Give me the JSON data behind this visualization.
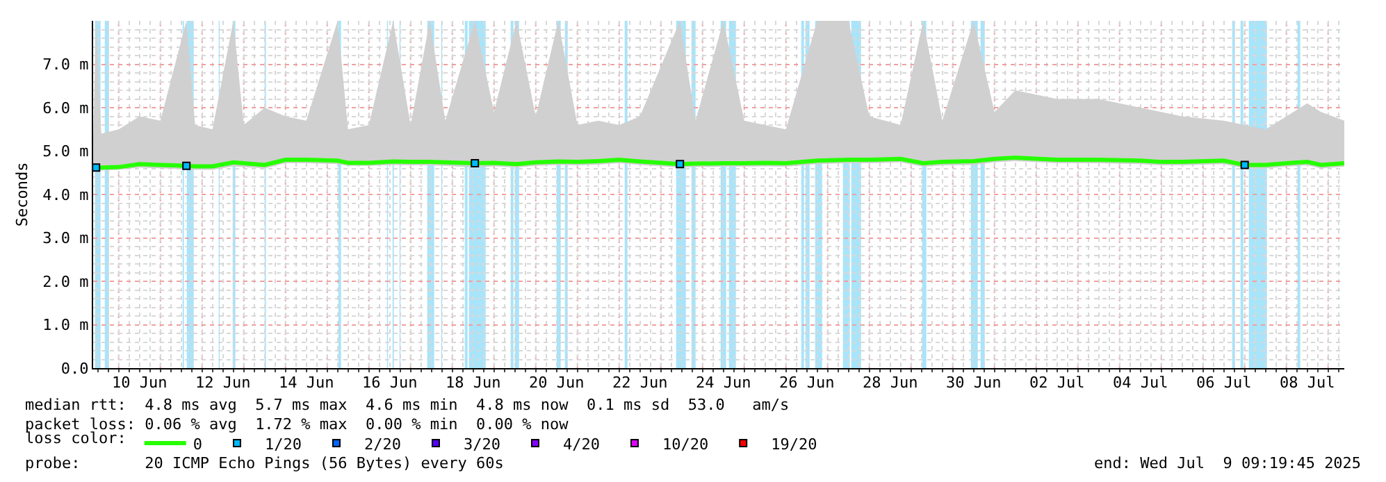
{
  "chart_data": {
    "type": "line",
    "ylabel": "Seconds",
    "legend_title": "loss color:",
    "xlim": [
      "2025-06-09T09:19",
      "2025-07-09T09:19"
    ],
    "xticks": [
      {
        "value": "2025-06-10T12:00",
        "label": "10 Jun"
      },
      {
        "value": "2025-06-12T12:00",
        "label": "12 Jun"
      },
      {
        "value": "2025-06-14T12:00",
        "label": "14 Jun"
      },
      {
        "value": "2025-06-16T12:00",
        "label": "16 Jun"
      },
      {
        "value": "2025-06-18T12:00",
        "label": "18 Jun"
      },
      {
        "value": "2025-06-20T12:00",
        "label": "20 Jun"
      },
      {
        "value": "2025-06-22T12:00",
        "label": "22 Jun"
      },
      {
        "value": "2025-06-24T12:00",
        "label": "24 Jun"
      },
      {
        "value": "2025-06-26T12:00",
        "label": "26 Jun"
      },
      {
        "value": "2025-06-28T12:00",
        "label": "28 Jun"
      },
      {
        "value": "2025-06-30T12:00",
        "label": "30 Jun"
      },
      {
        "value": "2025-07-02T12:00",
        "label": "02 Jul"
      },
      {
        "value": "2025-07-04T12:00",
        "label": "04 Jul"
      },
      {
        "value": "2025-07-06T12:00",
        "label": "06 Jul"
      },
      {
        "value": "2025-07-08T12:00",
        "label": "08 Jul"
      }
    ],
    "ylim": [
      0,
      8
    ],
    "yticks": [
      {
        "value": 0,
        "label": "0.0"
      },
      {
        "value": 1,
        "label": "1.0 m"
      },
      {
        "value": 2,
        "label": "2.0 m"
      },
      {
        "value": 3,
        "label": "3.0 m"
      },
      {
        "value": 4,
        "label": "4.0 m"
      },
      {
        "value": 5,
        "label": "5.0 m"
      },
      {
        "value": 6,
        "label": "6.0 m"
      },
      {
        "value": 7,
        "label": "7.0 m"
      }
    ],
    "grid": true,
    "legend": "bottom",
    "series": [
      {
        "name": "0",
        "color": "#26ff00",
        "x": [
          "2025-06-09T09:19",
          "2025-06-09T11:00",
          "2025-06-09T14:00",
          "2025-06-10T00:00",
          "2025-06-10T12:00",
          "2025-06-11T00:00",
          "2025-06-11T15:00",
          "2025-06-11T20:00",
          "2025-06-12T06:00",
          "2025-06-12T18:00",
          "2025-06-13T00:00",
          "2025-06-13T12:00",
          "2025-06-14T00:00",
          "2025-06-14T12:00",
          "2025-06-15T06:00",
          "2025-06-15T12:00",
          "2025-06-16T00:00",
          "2025-06-16T14:00",
          "2025-06-17T00:00",
          "2025-06-17T11:00",
          "2025-06-17T20:00",
          "2025-06-18T13:00",
          "2025-06-19T00:00",
          "2025-06-19T13:00",
          "2025-06-20T00:00",
          "2025-06-20T13:00",
          "2025-06-21T00:00",
          "2025-06-21T12:00",
          "2025-06-22T00:00",
          "2025-06-22T12:00",
          "2025-06-23T11:00",
          "2025-06-23T20:00",
          "2025-06-24T12:00",
          "2025-06-25T00:00",
          "2025-06-25T12:00",
          "2025-06-26T00:00",
          "2025-06-26T18:00",
          "2025-06-27T12:00",
          "2025-06-28T00:00",
          "2025-06-28T18:00",
          "2025-06-29T07:00",
          "2025-06-29T18:00",
          "2025-06-30T12:00",
          "2025-07-01T00:00",
          "2025-07-01T12:00",
          "2025-07-02T12:00",
          "2025-07-03T12:00",
          "2025-07-04T12:00",
          "2025-07-05T00:00",
          "2025-07-05T12:00",
          "2025-07-06T12:00",
          "2025-07-07T00:00",
          "2025-07-07T12:00",
          "2025-07-08T00:00",
          "2025-07-08T12:00",
          "2025-07-08T20:00",
          "2025-07-09T09:19"
        ],
        "values": [
          4.62,
          4.62,
          4.62,
          4.63,
          4.7,
          4.68,
          4.66,
          4.65,
          4.65,
          4.74,
          4.72,
          4.68,
          4.8,
          4.8,
          4.78,
          4.73,
          4.73,
          4.76,
          4.75,
          4.75,
          4.74,
          4.72,
          4.73,
          4.7,
          4.74,
          4.76,
          4.75,
          4.77,
          4.8,
          4.76,
          4.7,
          4.71,
          4.72,
          4.72,
          4.73,
          4.72,
          4.78,
          4.8,
          4.8,
          4.82,
          4.72,
          4.75,
          4.77,
          4.82,
          4.85,
          4.8,
          4.8,
          4.78,
          4.75,
          4.75,
          4.78,
          4.68,
          4.68,
          4.72,
          4.75,
          4.68,
          4.72
        ],
        "lower": [
          4.55,
          4.55,
          4.55,
          4.57,
          4.62,
          4.6,
          4.58,
          4.57,
          4.57,
          4.65,
          4.63,
          4.6,
          4.72,
          4.72,
          4.7,
          4.66,
          4.66,
          4.68,
          4.67,
          4.67,
          4.66,
          4.62,
          4.65,
          4.62,
          4.66,
          4.68,
          4.67,
          4.69,
          4.72,
          4.68,
          4.62,
          4.63,
          4.64,
          4.64,
          4.65,
          4.64,
          4.7,
          4.72,
          4.72,
          4.74,
          4.64,
          4.67,
          4.68,
          4.74,
          4.77,
          4.72,
          4.72,
          4.7,
          4.67,
          4.67,
          4.7,
          4.6,
          4.6,
          4.64,
          4.67,
          4.6,
          4.64
        ],
        "upper": [
          5.3,
          8.0,
          5.4,
          5.5,
          5.8,
          5.7,
          8.0,
          5.6,
          5.5,
          8.0,
          5.6,
          6.0,
          5.8,
          5.7,
          8.0,
          5.5,
          5.6,
          8.0,
          5.6,
          8.0,
          5.7,
          8.0,
          5.9,
          8.0,
          5.8,
          8.0,
          5.6,
          5.7,
          5.6,
          5.8,
          8.0,
          5.7,
          8.0,
          5.7,
          5.6,
          5.5,
          8.0,
          8.0,
          5.8,
          5.6,
          8.0,
          5.7,
          8.0,
          5.9,
          6.4,
          6.2,
          6.2,
          6.0,
          5.9,
          5.8,
          5.7,
          5.6,
          5.5,
          5.8,
          6.1,
          5.9,
          5.7
        ]
      },
      {
        "name": "1/20",
        "type": "scatter",
        "color": "#00b8ff",
        "x": [
          "2025-06-09T11:00",
          "2025-06-11T15:00",
          "2025-06-18T13:00",
          "2025-06-23T11:00",
          "2025-07-07T00:00"
        ],
        "values": [
          4.62,
          4.66,
          4.72,
          4.7,
          4.68
        ]
      },
      {
        "name": "2/20",
        "type": "scatter",
        "color": "#0066ff"
      },
      {
        "name": "3/20",
        "type": "scatter",
        "color": "#5500ff"
      },
      {
        "name": "4/20",
        "type": "scatter",
        "color": "#8800ff"
      },
      {
        "name": "10/20",
        "type": "scatter",
        "color": "#dd00ff"
      },
      {
        "name": "19/20",
        "type": "scatter",
        "color": "#ff0000"
      }
    ],
    "bands": [
      {
        "axis": "x",
        "from": "2025-06-09T10:24",
        "to": "2025-06-09T13:36",
        "color": "#a8e4fa"
      },
      {
        "axis": "x",
        "from": "2025-06-09T16:00",
        "to": "2025-06-09T18:24",
        "color": "#a8e4fa"
      },
      {
        "axis": "x",
        "from": "2025-06-11T12:48",
        "to": "2025-06-11T13:36",
        "color": "#a8e4fa"
      },
      {
        "axis": "x",
        "from": "2025-06-11T15:12",
        "to": "2025-06-11T19:12",
        "color": "#a8e4fa"
      },
      {
        "axis": "x",
        "from": "2025-06-12T09:36",
        "to": "2025-06-12T10:12",
        "color": "#a8e4fa"
      },
      {
        "axis": "x",
        "from": "2025-06-12T17:36",
        "to": "2025-06-12T19:12",
        "color": "#a8e4fa"
      },
      {
        "axis": "x",
        "from": "2025-06-13T12:00",
        "to": "2025-06-13T12:48",
        "color": "#a8e4fa"
      },
      {
        "axis": "x",
        "from": "2025-06-15T06:24",
        "to": "2025-06-15T08:00",
        "color": "#a8e4fa"
      },
      {
        "axis": "x",
        "from": "2025-06-16T10:24",
        "to": "2025-06-16T11:00",
        "color": "#a8e4fa"
      },
      {
        "axis": "x",
        "from": "2025-06-16T13:36",
        "to": "2025-06-16T14:24",
        "color": "#a8e4fa"
      },
      {
        "axis": "x",
        "from": "2025-06-16T17:36",
        "to": "2025-06-16T18:12",
        "color": "#a8e4fa"
      },
      {
        "axis": "x",
        "from": "2025-06-17T09:36",
        "to": "2025-06-17T13:36",
        "color": "#a8e4fa"
      },
      {
        "axis": "x",
        "from": "2025-06-17T17:36",
        "to": "2025-06-17T18:12",
        "color": "#a8e4fa"
      },
      {
        "axis": "x",
        "from": "2025-06-18T07:12",
        "to": "2025-06-18T08:48",
        "color": "#a8e4fa"
      },
      {
        "axis": "x",
        "from": "2025-06-18T09:36",
        "to": "2025-06-18T19:12",
        "color": "#a8e4fa"
      },
      {
        "axis": "x",
        "from": "2025-06-19T09:36",
        "to": "2025-06-19T11:12",
        "color": "#a8e4fa"
      },
      {
        "axis": "x",
        "from": "2025-06-19T12:00",
        "to": "2025-06-19T14:24",
        "color": "#a8e4fa"
      },
      {
        "axis": "x",
        "from": "2025-06-20T12:00",
        "to": "2025-06-20T14:24",
        "color": "#a8e4fa"
      },
      {
        "axis": "x",
        "from": "2025-06-20T16:48",
        "to": "2025-06-20T18:24",
        "color": "#a8e4fa"
      },
      {
        "axis": "x",
        "from": "2025-06-22T03:12",
        "to": "2025-06-22T04:48",
        "color": "#a8e4fa"
      },
      {
        "axis": "x",
        "from": "2025-06-23T08:48",
        "to": "2025-06-23T14:24",
        "color": "#a8e4fa"
      },
      {
        "axis": "x",
        "from": "2025-06-23T17:36",
        "to": "2025-06-23T20:00",
        "color": "#a8e4fa"
      },
      {
        "axis": "x",
        "from": "2025-06-24T10:24",
        "to": "2025-06-24T13:36",
        "color": "#a8e4fa"
      },
      {
        "axis": "x",
        "from": "2025-06-24T15:12",
        "to": "2025-06-24T19:12",
        "color": "#a8e4fa"
      },
      {
        "axis": "x",
        "from": "2025-06-26T08:48",
        "to": "2025-06-26T10:24",
        "color": "#a8e4fa"
      },
      {
        "axis": "x",
        "from": "2025-06-26T11:12",
        "to": "2025-06-26T13:36",
        "color": "#a8e4fa"
      },
      {
        "axis": "x",
        "from": "2025-06-26T16:48",
        "to": "2025-06-26T20:48",
        "color": "#a8e4fa"
      },
      {
        "axis": "x",
        "from": "2025-06-27T08:48",
        "to": "2025-06-27T12:48",
        "color": "#a8e4fa"
      },
      {
        "axis": "x",
        "from": "2025-06-27T13:36",
        "to": "2025-06-27T19:12",
        "color": "#a8e4fa"
      },
      {
        "axis": "x",
        "from": "2025-06-29T06:24",
        "to": "2025-06-29T08:48",
        "color": "#a8e4fa"
      },
      {
        "axis": "x",
        "from": "2025-06-30T10:24",
        "to": "2025-06-30T14:24",
        "color": "#a8e4fa"
      },
      {
        "axis": "x",
        "from": "2025-06-30T16:00",
        "to": "2025-06-30T18:24",
        "color": "#a8e4fa"
      },
      {
        "axis": "x",
        "from": "2025-07-06T16:48",
        "to": "2025-07-06T18:24",
        "color": "#a8e4fa"
      },
      {
        "axis": "x",
        "from": "2025-07-06T21:36",
        "to": "2025-07-06T23:12",
        "color": "#a8e4fa"
      },
      {
        "axis": "x",
        "from": "2025-07-07T02:24",
        "to": "2025-07-07T12:48",
        "color": "#a8e4fa"
      },
      {
        "axis": "x",
        "from": "2025-07-08T06:24",
        "to": "2025-07-08T08:00",
        "color": "#a8e4fa"
      }
    ],
    "annotations": [
      "median rtt:  4.8 ms avg  5.7 ms max  4.6 ms min  4.8 ms now  0.1 ms sd  53.0   am/s",
      "packet loss: 0.06 % avg  1.72 % max  0.00 % min  0.00 % now",
      "probe:       20 ICMP Echo Pings (56 Bytes) every 60s",
      "end: Wed Jul  9 09:19:45 2025"
    ]
  }
}
